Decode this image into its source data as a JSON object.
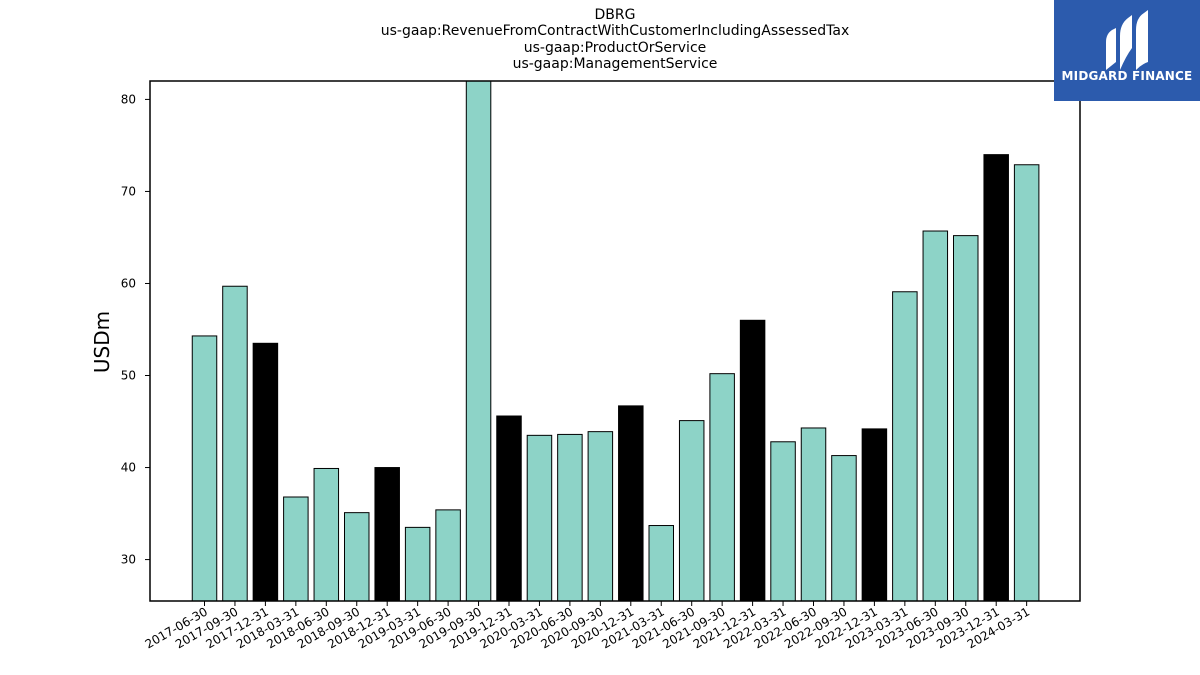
{
  "title_lines": [
    "DBRG",
    "us-gaap:RevenueFromContractWithCustomerIncludingAssessedTax",
    "us-gaap:ProductOrService",
    "us-gaap:ManagementService"
  ],
  "logo": {
    "text": "MIDGARD FINANCE",
    "background": "#2c5bad"
  },
  "chart_data": {
    "type": "bar",
    "title": "DBRG",
    "ylabel": "USDm",
    "xlabel": "",
    "ylim": [
      25.5,
      82
    ],
    "yticks": [
      30,
      40,
      50,
      60,
      70,
      80
    ],
    "grid": false,
    "colors": {
      "quarter": "#8dd3c7",
      "year_end": "#000000",
      "edge": "#000000"
    },
    "categories": [
      "2017-06-30",
      "2017-09-30",
      "2017-12-31",
      "2018-03-31",
      "2018-06-30",
      "2018-09-30",
      "2018-12-31",
      "2019-03-31",
      "2019-06-30",
      "2019-09-30",
      "2019-12-31",
      "2020-03-31",
      "2020-06-30",
      "2020-09-30",
      "2020-12-31",
      "2021-03-31",
      "2021-06-30",
      "2021-09-30",
      "2021-12-31",
      "2022-03-31",
      "2022-06-30",
      "2022-09-30",
      "2022-12-31",
      "2023-03-31",
      "2023-06-30",
      "2023-09-30",
      "2023-12-31",
      "2024-03-31"
    ],
    "values": [
      54.3,
      59.7,
      53.5,
      36.8,
      39.9,
      35.1,
      40.0,
      33.5,
      35.4,
      82.5,
      45.6,
      43.5,
      43.6,
      43.9,
      46.7,
      33.7,
      45.1,
      50.2,
      56.0,
      42.8,
      44.3,
      41.3,
      44.2,
      59.1,
      65.7,
      65.2,
      74.0,
      72.9
    ],
    "year_end": [
      false,
      false,
      true,
      false,
      false,
      false,
      true,
      false,
      false,
      false,
      true,
      false,
      false,
      false,
      true,
      false,
      false,
      false,
      true,
      false,
      false,
      false,
      true,
      false,
      false,
      false,
      true,
      false
    ]
  }
}
